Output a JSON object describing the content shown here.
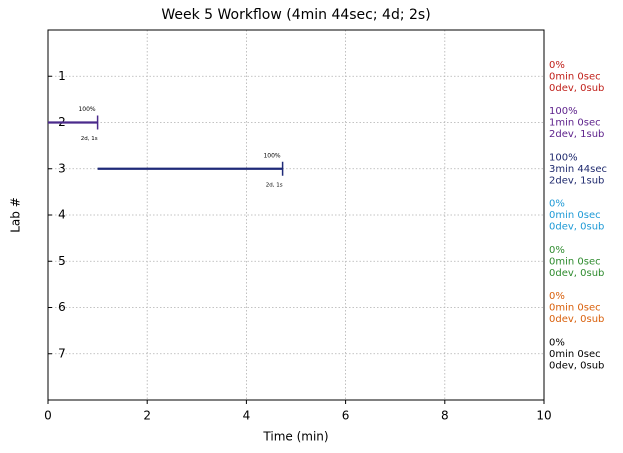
{
  "chart_data": {
    "type": "timeline",
    "title": "Week 5 Workflow (4min 44sec; 4d; 2s)",
    "x_label": "Time (min)",
    "y_label": "Lab #",
    "xlim": [
      0,
      10
    ],
    "xticks": [
      0,
      2,
      4,
      6,
      8,
      10
    ],
    "ylim": [
      8,
      0
    ],
    "categories": [
      1,
      2,
      3,
      4,
      5,
      6,
      7
    ],
    "grid": true,
    "segments": [
      {
        "lab": 2,
        "start": 0,
        "end": 1.0,
        "color": "#4b2a8c",
        "label_top": "100%",
        "label_bottom": "2d, 1s"
      },
      {
        "lab": 3,
        "start": 1.0,
        "end": 4.73,
        "color": "#1f2a78",
        "label_top": "100%",
        "label_bottom": "2d, 1s"
      }
    ],
    "annotations": [
      {
        "lab": 1,
        "color": "#c0201a",
        "lines": [
          "0%",
          "0min 0sec",
          "0dev, 0sub"
        ]
      },
      {
        "lab": 2,
        "color": "#5b1f8a",
        "lines": [
          "100%",
          "1min 0sec",
          "2dev, 1sub"
        ]
      },
      {
        "lab": 3,
        "color": "#1f2a6e",
        "lines": [
          "100%",
          "3min 44sec",
          "2dev, 1sub"
        ]
      },
      {
        "lab": 4,
        "color": "#1e9ad6",
        "lines": [
          "0%",
          "0min 0sec",
          "0dev, 0sub"
        ]
      },
      {
        "lab": 5,
        "color": "#2e8b2e",
        "lines": [
          "0%",
          "0min 0sec",
          "0dev, 0sub"
        ]
      },
      {
        "lab": 6,
        "color": "#d9600c",
        "lines": [
          "0%",
          "0min 0sec",
          "0dev, 0sub"
        ]
      },
      {
        "lab": 7,
        "color": "#000000",
        "lines": [
          "0%",
          "0min 0sec",
          "0dev, 0sub"
        ]
      }
    ]
  }
}
